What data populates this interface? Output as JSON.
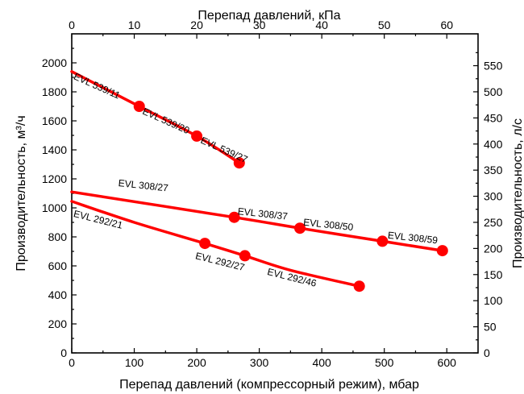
{
  "colors": {
    "series": "#ff0000",
    "axis": "#000000",
    "background": "#ffffff"
  },
  "chart_data": {
    "type": "line",
    "grid": false,
    "xlabel_bottom": "Перепад давлений (компрессорный режим), мбар",
    "xlabel_top": "Перепад давлений, кПа",
    "ylabel_left": "Производительность, м³/ч",
    "ylabel_right": "Производительность, л/с",
    "xlim_bottom": [
      0,
      650
    ],
    "xticks_bottom": [
      0,
      100,
      200,
      300,
      400,
      500,
      600
    ],
    "xlim_top": [
      0,
      65
    ],
    "xticks_top": [
      0,
      10,
      20,
      30,
      40,
      50,
      60
    ],
    "ylim_left": [
      0,
      2200
    ],
    "yticks_left": [
      0,
      200,
      400,
      600,
      800,
      1000,
      1200,
      1400,
      1600,
      1800,
      2000
    ],
    "ylim_right": [
      0,
      611
    ],
    "yticks_right": [
      0,
      50,
      100,
      150,
      200,
      250,
      300,
      350,
      400,
      450,
      500,
      550
    ],
    "series": [
      {
        "curve": [
          [
            0,
            1940
          ],
          [
            108,
            1700
          ],
          [
            200,
            1495
          ],
          [
            268,
            1310
          ]
        ],
        "points": [
          [
            108,
            1700
          ],
          [
            200,
            1495
          ],
          [
            268,
            1310
          ]
        ]
      },
      {
        "curve": [
          [
            0,
            1110
          ],
          [
            260,
            935
          ],
          [
            365,
            860
          ],
          [
            497,
            770
          ],
          [
            593,
            705
          ]
        ],
        "points": [
          [
            260,
            935
          ],
          [
            365,
            860
          ],
          [
            497,
            770
          ],
          [
            593,
            705
          ]
        ]
      },
      {
        "curve": [
          [
            0,
            1045
          ],
          [
            100,
            900
          ],
          [
            213,
            755
          ],
          [
            277,
            670
          ],
          [
            350,
            570
          ],
          [
            460,
            460
          ]
        ],
        "points": [
          [
            213,
            755
          ],
          [
            277,
            670
          ],
          [
            460,
            460
          ]
        ]
      }
    ],
    "annotations": [
      {
        "text": "EVL 539/11",
        "x": 2,
        "y": 1890,
        "rotate": 24
      },
      {
        "text": "EVL 539/20",
        "x": 112,
        "y": 1650,
        "rotate": 24
      },
      {
        "text": "EVL 539/27",
        "x": 205,
        "y": 1450,
        "rotate": 24
      },
      {
        "text": "EVL 308/27",
        "x": 74,
        "y": 1150,
        "rotate": 6
      },
      {
        "text": "EVL 308/37",
        "x": 265,
        "y": 955,
        "rotate": 6
      },
      {
        "text": "EVL 308/50",
        "x": 370,
        "y": 880,
        "rotate": 6
      },
      {
        "text": "EVL 308/59",
        "x": 505,
        "y": 790,
        "rotate": 6
      },
      {
        "text": "EVL 292/21",
        "x": 2,
        "y": 940,
        "rotate": 14
      },
      {
        "text": "EVL 292/27",
        "x": 197,
        "y": 650,
        "rotate": 14
      },
      {
        "text": "EVL 292/46",
        "x": 312,
        "y": 540,
        "rotate": 14
      }
    ]
  }
}
